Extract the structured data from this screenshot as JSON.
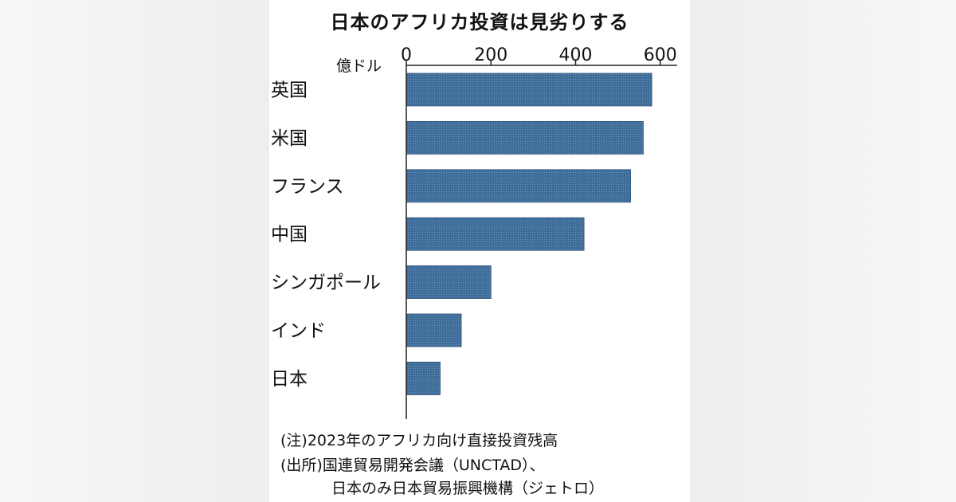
{
  "chart_data": {
    "type": "bar",
    "orientation": "horizontal",
    "title": "日本のアフリカ投資は見劣りする",
    "unit_label": "億ドル",
    "categories": [
      "英国",
      "米国",
      "フランス",
      "中国",
      "シンガポール",
      "インド",
      "日本"
    ],
    "values": [
      580,
      560,
      530,
      420,
      200,
      130,
      80
    ],
    "xlim": [
      0,
      640
    ],
    "ticks": [
      0,
      200,
      400,
      600
    ],
    "bar_color": "#3f6d9a",
    "grid": false
  },
  "notes": {
    "note1": "(注)2023年のアフリカ向け直接投資残高",
    "source_line1": "(出所)国連貿易開発会議（UNCTAD）、",
    "source_line2": "日本のみ日本貿易振興機構（ジェトロ）"
  }
}
